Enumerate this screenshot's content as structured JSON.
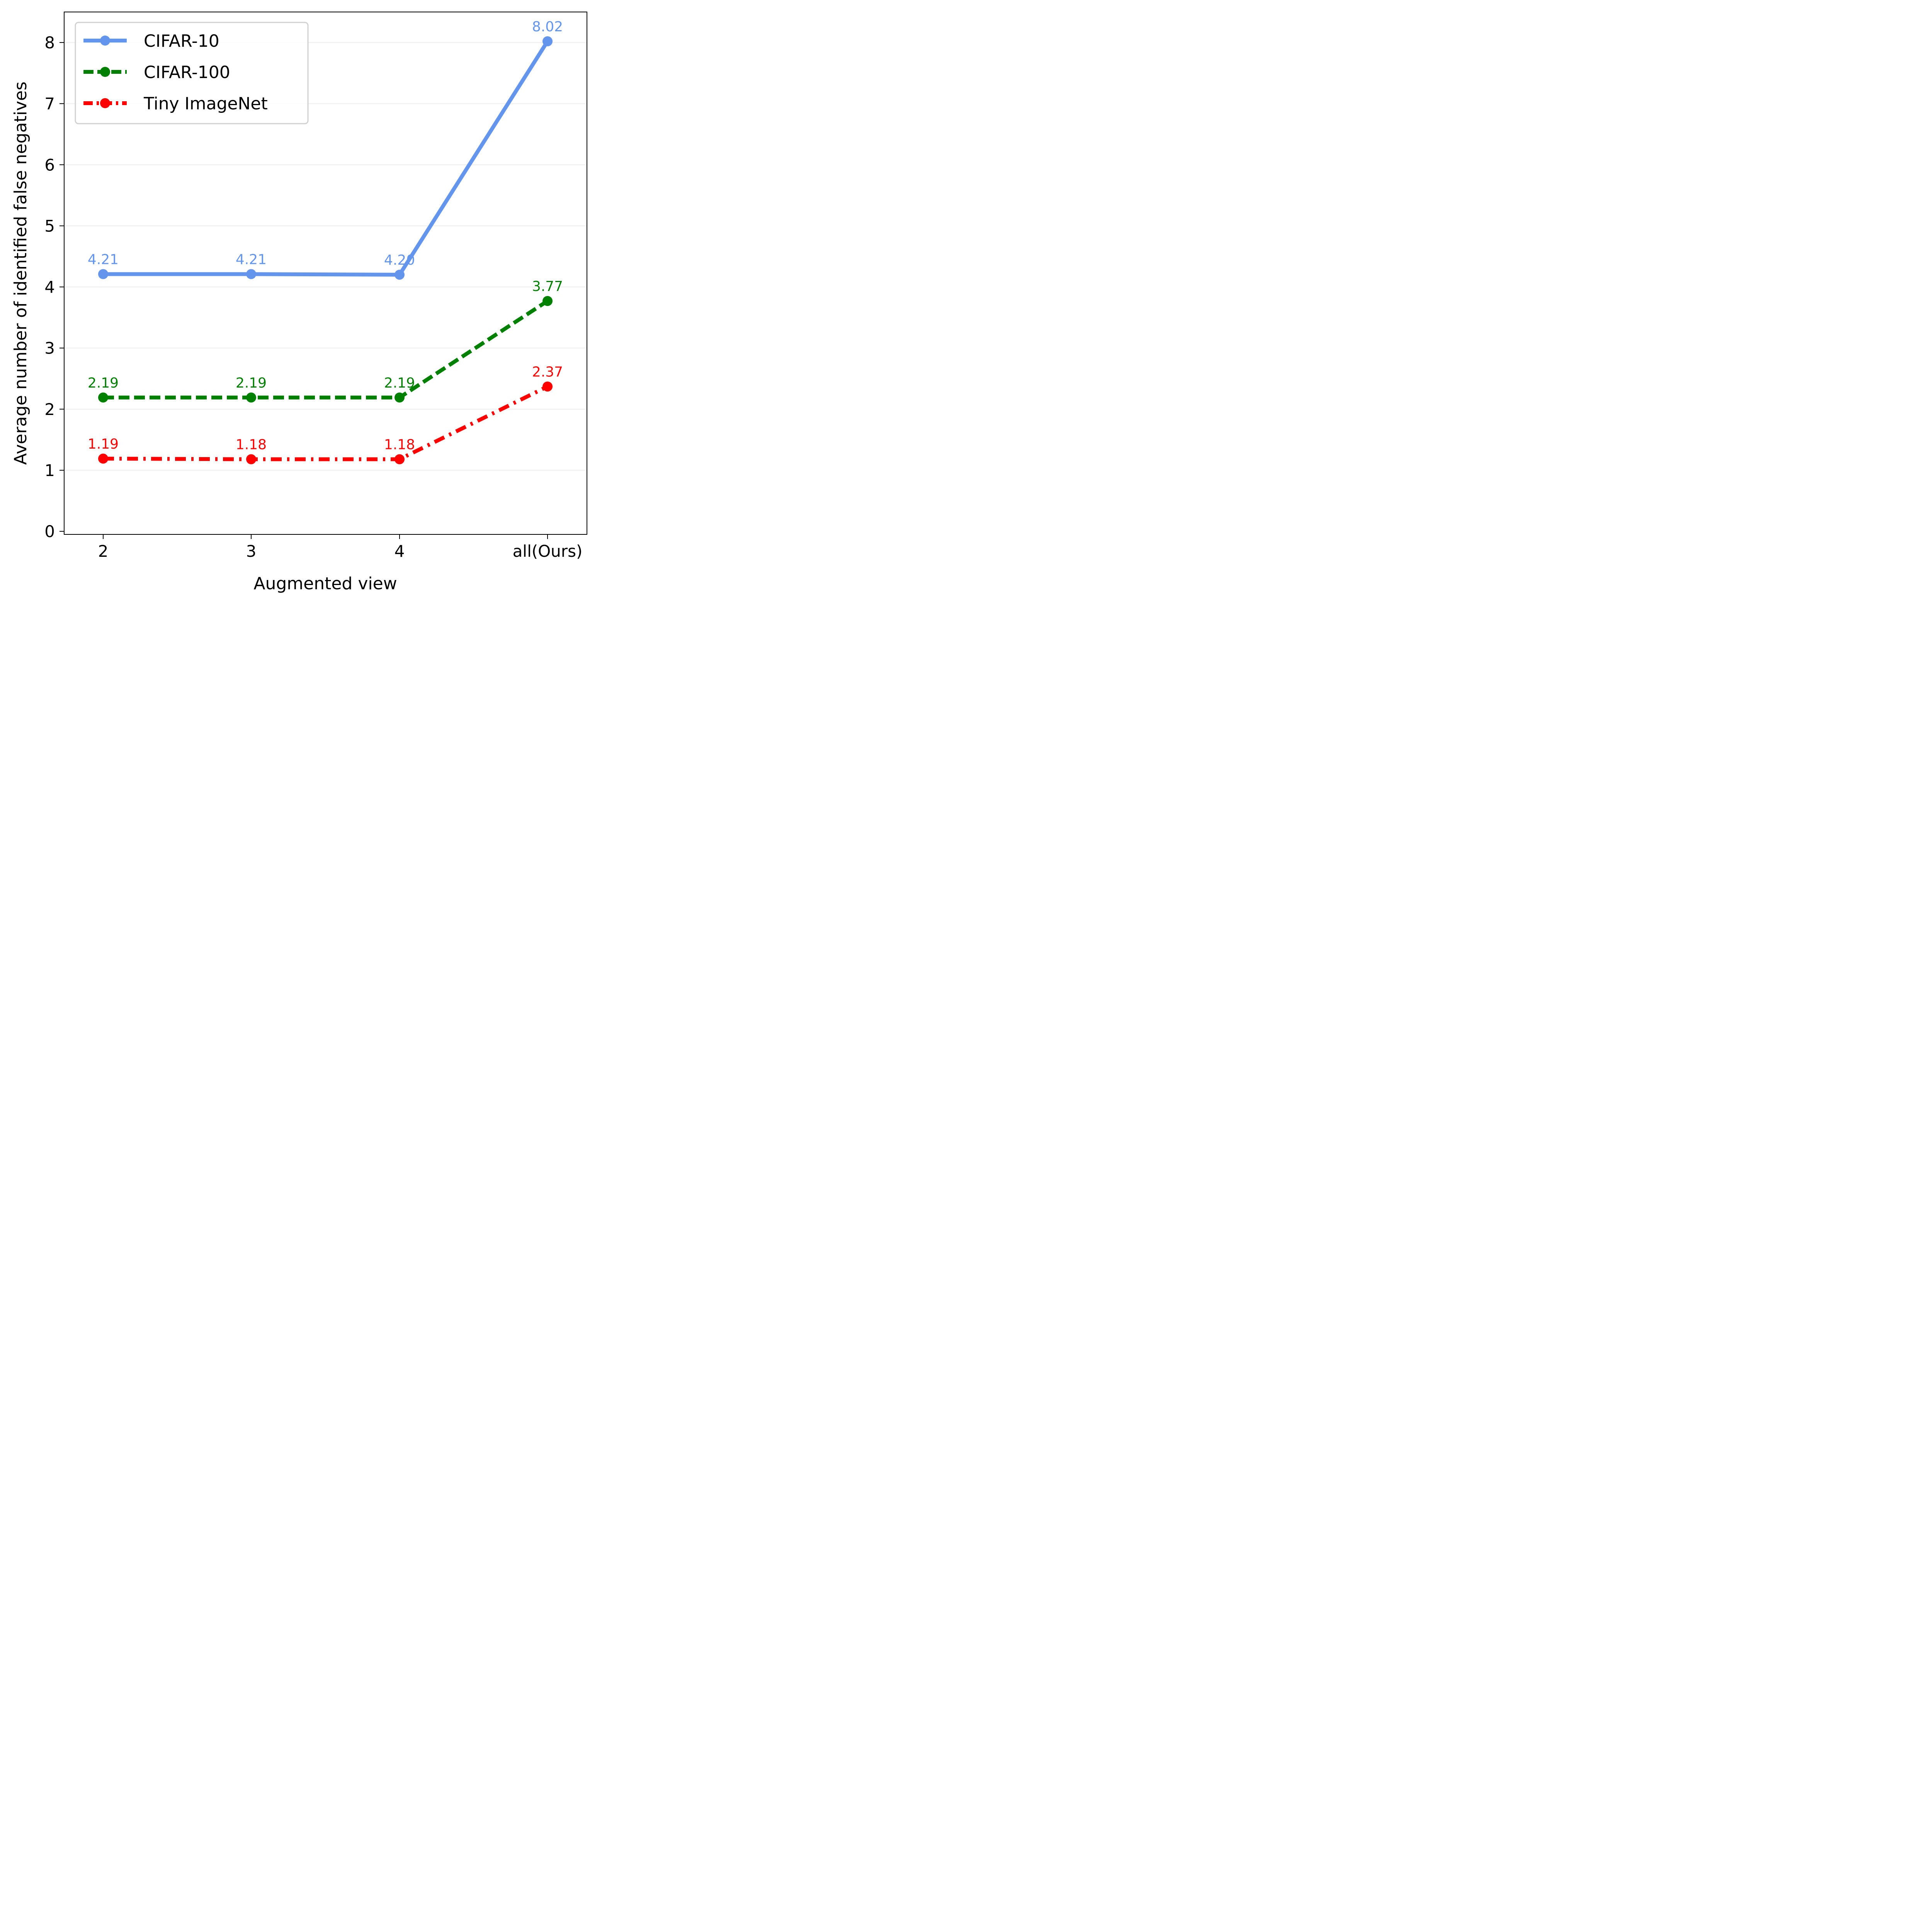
{
  "chart_data": {
    "type": "line",
    "title": "",
    "xlabel": "Augmented view",
    "ylabel": "Average number of identified false negatives",
    "categories": [
      "2",
      "3",
      "4",
      "all(Ours)"
    ],
    "yticks": [
      "0",
      "1",
      "2",
      "3",
      "4",
      "5",
      "6",
      "7",
      "8"
    ],
    "ylim": [
      -0.05,
      8.5
    ],
    "grid": "horizontal",
    "legend_position": "top-left",
    "series": [
      {
        "name": "CIFAR-10",
        "values": [
          4.21,
          4.21,
          4.2,
          8.02
        ],
        "labels": [
          "4.21",
          "4.21",
          "4.20",
          "8.02"
        ],
        "color": "#6495ED",
        "linestyle": "solid"
      },
      {
        "name": "CIFAR-100",
        "values": [
          2.19,
          2.19,
          2.19,
          3.77
        ],
        "labels": [
          "2.19",
          "2.19",
          "2.19",
          "3.77"
        ],
        "color": "#008000",
        "linestyle": "dashed"
      },
      {
        "name": "Tiny ImageNet",
        "values": [
          1.19,
          1.18,
          1.18,
          2.37
        ],
        "labels": [
          "1.19",
          "1.18",
          "1.18",
          "2.37"
        ],
        "color": "#FF0000",
        "linestyle": "dashdot"
      }
    ]
  }
}
